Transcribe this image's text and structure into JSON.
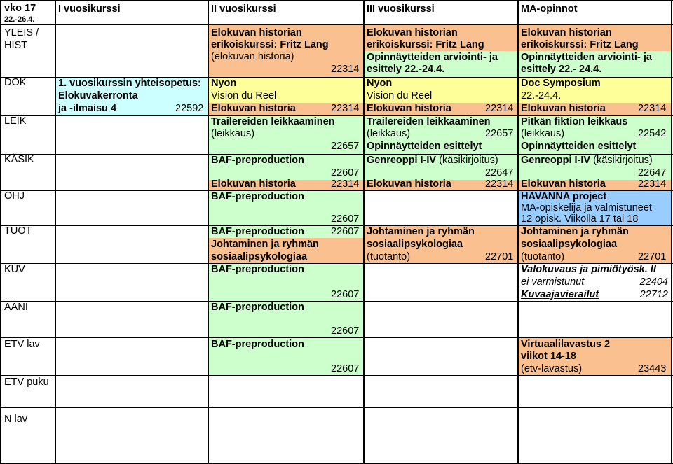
{
  "colors": {
    "orange": "#fac090",
    "lightgreen": "#ccffcc",
    "cyan": "#ccffff",
    "yellow": "#ffff99",
    "blue": "#99ccff"
  },
  "header": {
    "week": "vko 17",
    "dates": "22.-26.4.",
    "col1": "I vuosikurssi",
    "col2": "II vuosikurssi",
    "col3": "III vuosikurssi",
    "col4": "MA-opinnot"
  },
  "rows": {
    "yleis_hist": "YLEIS /",
    "hist": "HIST",
    "dok": "DOK",
    "leik": "LEIK",
    "kasik": "KÄSIK",
    "ohj": "OHJ",
    "tuot": "TUOT",
    "kuv": "KUV",
    "aani": "ÄÄNI",
    "etv_lav": "ETV lav",
    "etv_puku": "ETV puku",
    "n_lav": "N lav"
  },
  "col1": {
    "dok_line1": "1. vuosikurssin yhteisopetus:",
    "dok_line2": "Elokuvakerronta",
    "dok_line3": "ja -ilmaisu 4",
    "dok_code": "22592"
  },
  "col2": {
    "hist_line1": "Elokuvan historian",
    "hist_line2": "erikoiskurssi: Fritz Lang",
    "hist_line3": "(elokuvan historia)",
    "hist_code": "22314",
    "dok_nyon": "Nyon",
    "dok_reel": "Vision du Reel",
    "dok_hist": "Elokuvan historia",
    "dok_hist_code": "22314",
    "leik_line1": "Trailereiden leikkaaminen",
    "leik_line2": "(leikkaus)",
    "leik_code": "22657",
    "kasik_baf": "BAF-preproduction",
    "kasik_code": "22607",
    "kasik_hist": "Elokuvan historia",
    "kasik_hist_code": "22314",
    "ohj_baf": "BAF-preproduction",
    "ohj_code": "22607",
    "tuot_baf": "BAF-preproduction",
    "tuot_code": "22607",
    "tuot_line2": "Johtaminen ja ryhmän",
    "tuot_line3": "sosiaalipsykologiaa",
    "kuv_baf": "BAF-preproduction",
    "kuv_code": "22607",
    "aani_baf": "BAF-preproduction",
    "aani_code": "22607",
    "etv_baf": "BAF-preproduction",
    "etv_code": "22607"
  },
  "col3": {
    "hist_line1": "Elokuvan historian",
    "hist_line2": "erikoiskurssi: Fritz Lang",
    "hist_line3": "Opinnäytteiden arviointi- ja",
    "hist_line4": "esittely 22.-24.4.",
    "dok_nyon": "Nyon",
    "dok_reel": "Vision du Reel",
    "dok_hist": "Elokuvan historia",
    "dok_hist_code": "22314",
    "leik_line1": "Trailereiden leikkaaminen",
    "leik_line2": "(leikkaus)",
    "leik_code": "22657",
    "leik_line3": "Opinnäytteiden esittelyt",
    "kasik_line1_b": "Genreoppi I-IV",
    "kasik_line1_n": "(käsikirjoitus)",
    "kasik_code": "22647",
    "kasik_hist": "Elokuvan historia",
    "kasik_hist_code": "22314",
    "tuot_line1": "Johtaminen ja ryhmän",
    "tuot_line2": "sosiaalipsykologiaa",
    "tuot_line3": "(tuotanto)",
    "tuot_code": "22701"
  },
  "col4": {
    "hist_line1": "Elokuvan historian",
    "hist_line2": "erikoiskurssi: Fritz Lang",
    "hist_line3": "Opinnäytteiden arviointi- ja",
    "hist_line4": "esittely 22.- 24.4.",
    "dok_line1": "Doc Symposium",
    "dok_line2": "22.-24.4.",
    "dok_hist": "Elokuvan historia",
    "dok_hist_code": "22314",
    "leik_line1": "Pitkän fiktion leikkaus",
    "leik_line2": "(leikkaus)",
    "leik_code": "22542",
    "leik_line3": "Opinnäytteiden esittelyt",
    "kasik_line1_b": "Genreoppi I-IV",
    "kasik_line1_n": "(käsikirjoitus)",
    "kasik_code": "22647",
    "kasik_hist": "Elokuvan historia",
    "kasik_hist_code": "22314",
    "ohj_line1": "HAVANNA project",
    "ohj_line2": "MA-opiskelija ja valmistuneet",
    "ohj_line3": "12 opisk. Viikolla 17 tai 18",
    "tuot_line1": "Johtaminen ja ryhmän",
    "tuot_line2": "sosiaalipsykologiaa",
    "tuot_line3": "(tuotanto)",
    "tuot_code": "22701",
    "kuv_line1": "Valokuvaus ja pimiötyösk. II",
    "kuv_line2": "ei varmistunut",
    "kuv_line2_code": "22404",
    "kuv_line3": "Kuvaajavierailut",
    "kuv_line3_code": "22712",
    "etv_line1": "Virtuaalilavastus 2",
    "etv_line2": "viikot 14-18",
    "etv_line3": "(etv-lavastus)",
    "etv_code": "23443"
  }
}
